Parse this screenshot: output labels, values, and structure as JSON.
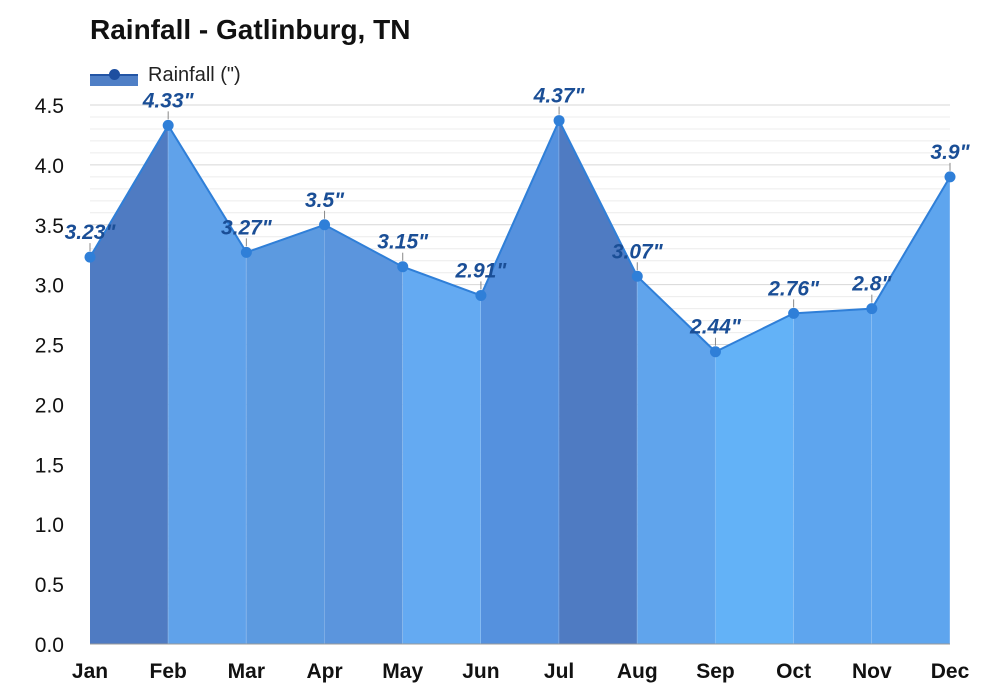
{
  "chart_data": {
    "type": "area",
    "title": "Rainfall - Gatlinburg, TN",
    "categories": [
      "Jan",
      "Feb",
      "Mar",
      "Apr",
      "May",
      "Jun",
      "Jul",
      "Aug",
      "Sep",
      "Oct",
      "Nov",
      "Dec"
    ],
    "series": [
      {
        "name": "Rainfall (\")",
        "values": [
          3.23,
          4.33,
          3.27,
          3.5,
          3.15,
          2.91,
          4.37,
          3.07,
          2.44,
          2.76,
          2.8,
          3.9
        ],
        "data_labels": [
          "3.23\"",
          "4.33\"",
          "3.27\"",
          "3.5\"",
          "3.15\"",
          "2.91\"",
          "4.37\"",
          "3.07\"",
          "2.44\"",
          "2.76\"",
          "2.8\"",
          "3.9\""
        ]
      }
    ],
    "ylim": [
      0,
      4.5
    ],
    "y_ticks": [
      "0.0",
      "0.5",
      "1.0",
      "1.5",
      "2.0",
      "2.5",
      "3.0",
      "3.5",
      "4.0",
      "4.5"
    ],
    "xlabel": "",
    "ylabel": "",
    "grid": true,
    "legend_position": "top-left",
    "segment_colors": [
      "#4f7bc2",
      "#60a2ea",
      "#5c9ae0",
      "#5b95dd",
      "#64aaf2",
      "#5591de",
      "#4f7bc2",
      "#60a4ec",
      "#63b2f7",
      "#5ea5ee",
      "#5ea5ee",
      "#5790d8"
    ],
    "line_color": "#2f7fd8",
    "point_color": "#2f7fd8"
  }
}
